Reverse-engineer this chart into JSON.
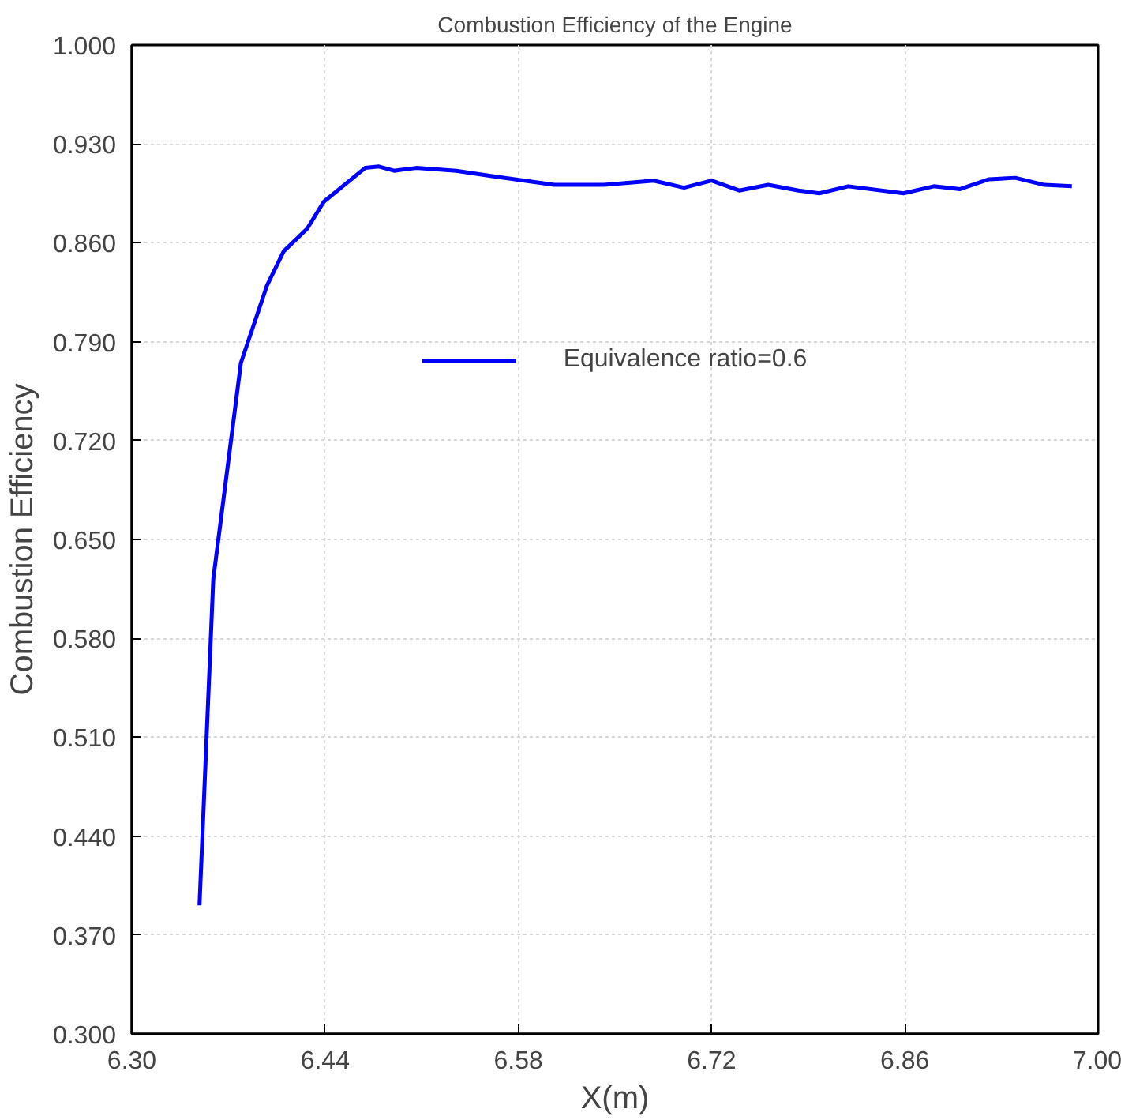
{
  "chart_data": {
    "type": "line",
    "title": "Combustion Efficiency of the Engine",
    "xlabel": "X(m)",
    "ylabel": "Combustion Efficiency",
    "xlim": [
      6.3,
      7.0
    ],
    "xticks": [
      {
        "value": 6.3,
        "label": "6.30"
      },
      {
        "value": 6.44,
        "label": "6.44"
      },
      {
        "value": 6.58,
        "label": "6.58"
      },
      {
        "value": 6.72,
        "label": "6.72"
      },
      {
        "value": 6.86,
        "label": "6.86"
      },
      {
        "value": 7.0,
        "label": "7.00"
      }
    ],
    "ylim": [
      0.3,
      1.0
    ],
    "yticks": [
      {
        "value": 0.3,
        "label": "0.300"
      },
      {
        "value": 0.37,
        "label": "0.370"
      },
      {
        "value": 0.44,
        "label": "0.440"
      },
      {
        "value": 0.51,
        "label": "0.510"
      },
      {
        "value": 0.58,
        "label": "0.580"
      },
      {
        "value": 0.65,
        "label": "0.650"
      },
      {
        "value": 0.72,
        "label": "0.720"
      },
      {
        "value": 0.79,
        "label": "0.790"
      },
      {
        "value": 0.86,
        "label": "0.860"
      },
      {
        "value": 0.93,
        "label": "0.930"
      },
      {
        "value": 1.0,
        "label": "1.000"
      }
    ],
    "grid": true,
    "legend": "top",
    "line_style": "solid",
    "series": [
      {
        "name": "Equivalence ratio=0.6",
        "color": "#0000ff",
        "x": [
          6.349,
          6.359,
          6.379,
          6.398,
          6.41,
          6.427,
          6.439,
          6.469,
          6.479,
          6.49,
          6.506,
          6.535,
          6.562,
          6.606,
          6.642,
          6.678,
          6.7,
          6.72,
          6.74,
          6.761,
          6.783,
          6.798,
          6.819,
          6.859,
          6.881,
          6.9,
          6.921,
          6.94,
          6.961,
          6.981
        ],
        "values": [
          0.391,
          0.622,
          0.775,
          0.83,
          0.854,
          0.87,
          0.889,
          0.913,
          0.914,
          0.911,
          0.913,
          0.911,
          0.907,
          0.901,
          0.901,
          0.904,
          0.899,
          0.904,
          0.897,
          0.901,
          0.897,
          0.895,
          0.9,
          0.895,
          0.9,
          0.898,
          0.905,
          0.906,
          0.901,
          0.9
        ]
      }
    ]
  }
}
